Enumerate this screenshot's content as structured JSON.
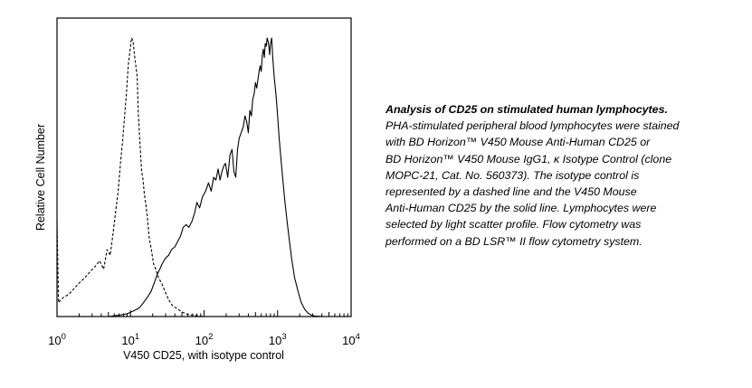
{
  "chart_data": {
    "type": "line",
    "title": "",
    "xlabel": "V450 CD25, with isotype control",
    "ylabel": "Relative Cell Number",
    "x_scale": "log",
    "xlim": [
      1,
      10000
    ],
    "ylim": [
      0,
      1
    ],
    "x_ticks": [
      {
        "value": 1,
        "base": "10",
        "exp": "0"
      },
      {
        "value": 10,
        "base": "10",
        "exp": "1"
      },
      {
        "value": 100,
        "base": "10",
        "exp": "2"
      },
      {
        "value": 1000,
        "base": "10",
        "exp": "3"
      },
      {
        "value": 10000,
        "base": "10",
        "exp": "4"
      }
    ],
    "grid": false,
    "legend": "none",
    "series": [
      {
        "style": "dashed",
        "color": "#000000",
        "x": [
          1.0,
          1.05,
          1.12,
          1.25,
          1.45,
          1.7,
          2.0,
          2.4,
          2.8,
          3.3,
          3.8,
          4.3,
          4.8,
          5.3,
          5.8,
          6.3,
          6.8,
          7.3,
          7.8,
          8.3,
          8.8,
          9.3,
          9.8,
          10.3,
          10.8,
          11.3,
          11.8,
          12.3,
          12.7,
          13.2,
          13.7,
          14.2,
          14.8,
          15.4,
          16.2,
          17.0,
          18.0,
          19.2,
          20.5,
          22.0,
          24.0,
          26.5,
          29.5,
          33.0,
          37.0,
          42.0,
          48.0,
          56.0,
          66.0,
          80.0,
          100.0
        ],
        "y": [
          0.34,
          0.05,
          0.06,
          0.07,
          0.08,
          0.1,
          0.12,
          0.14,
          0.16,
          0.18,
          0.2,
          0.17,
          0.24,
          0.22,
          0.3,
          0.38,
          0.45,
          0.55,
          0.63,
          0.72,
          0.8,
          0.9,
          0.95,
          1.0,
          0.99,
          0.94,
          0.9,
          0.86,
          0.74,
          0.66,
          0.58,
          0.52,
          0.49,
          0.44,
          0.4,
          0.35,
          0.28,
          0.24,
          0.19,
          0.17,
          0.14,
          0.12,
          0.09,
          0.06,
          0.04,
          0.03,
          0.02,
          0.01,
          0.006,
          0.003,
          0.0
        ]
      },
      {
        "style": "solid",
        "color": "#000000",
        "x": [
          5.0,
          7.0,
          9.0,
          11.0,
          13.0,
          15.0,
          17.0,
          19.0,
          21.0,
          23.0,
          25.0,
          27.0,
          30.0,
          33.0,
          36.0,
          40.0,
          44.0,
          48.0,
          52.0,
          57.0,
          62.0,
          68.0,
          74.0,
          80.0,
          87.0,
          95.0,
          105.0,
          115.0,
          125.0,
          135.0,
          145.0,
          155.0,
          165.0,
          175.0,
          185.0,
          195.0,
          210.0,
          225.0,
          240.0,
          255.0,
          270.0,
          285.0,
          300.0,
          320.0,
          340.0,
          360.0,
          380.0,
          400.0,
          420.0,
          440.0,
          460.0,
          480.0,
          500.0,
          520.0,
          540.0,
          560.0,
          580.0,
          600.0,
          620.0,
          640.0,
          660.0,
          680.0,
          700.0,
          720.0,
          740.0,
          760.0,
          780.0,
          800.0,
          830.0,
          860.0,
          900.0,
          950.0,
          1000.0,
          1050.0,
          1100.0,
          1170.0,
          1250.0,
          1350.0,
          1450.0,
          1550.0,
          1700.0,
          1900.0,
          2100.0,
          2350.0,
          2600.0,
          2900.0,
          3200.0,
          3600.0,
          4000.0,
          4500.0
        ],
        "y": [
          0.0,
          0.005,
          0.01,
          0.02,
          0.03,
          0.05,
          0.07,
          0.09,
          0.12,
          0.15,
          0.17,
          0.19,
          0.21,
          0.22,
          0.24,
          0.25,
          0.27,
          0.29,
          0.32,
          0.33,
          0.32,
          0.34,
          0.37,
          0.41,
          0.39,
          0.43,
          0.45,
          0.48,
          0.45,
          0.5,
          0.49,
          0.53,
          0.49,
          0.52,
          0.54,
          0.55,
          0.5,
          0.58,
          0.6,
          0.52,
          0.5,
          0.6,
          0.64,
          0.66,
          0.68,
          0.72,
          0.7,
          0.66,
          0.74,
          0.72,
          0.78,
          0.8,
          0.84,
          0.82,
          0.85,
          0.88,
          0.9,
          0.88,
          0.94,
          0.96,
          0.93,
          0.98,
          0.97,
          1.0,
          0.99,
          0.97,
          0.94,
          0.98,
          1.0,
          0.93,
          0.86,
          0.8,
          0.72,
          0.64,
          0.58,
          0.5,
          0.42,
          0.34,
          0.27,
          0.21,
          0.14,
          0.09,
          0.05,
          0.025,
          0.012,
          0.005,
          0.002,
          0.001,
          0.0,
          0.0
        ]
      }
    ]
  },
  "caption": {
    "title": "Analysis of CD25 on stimulated human lymphocytes.",
    "lines": [
      "PHA-stimulated peripheral blood lymphocytes were stained",
      "with BD Horizon™ V450 Mouse Anti-Human CD25 or",
      "BD Horizon™ V450 Mouse IgG1, κ Isotype Control (clone",
      "MOPC-21, Cat. No. 560373). The isotype control is",
      "represented by a dashed line and the V450 Mouse",
      "Anti-Human CD25 by the solid line. Lymphocytes were",
      "selected by light scatter profile. Flow cytometry was",
      "performed on a BD LSR™ II flow cytometry system."
    ]
  }
}
